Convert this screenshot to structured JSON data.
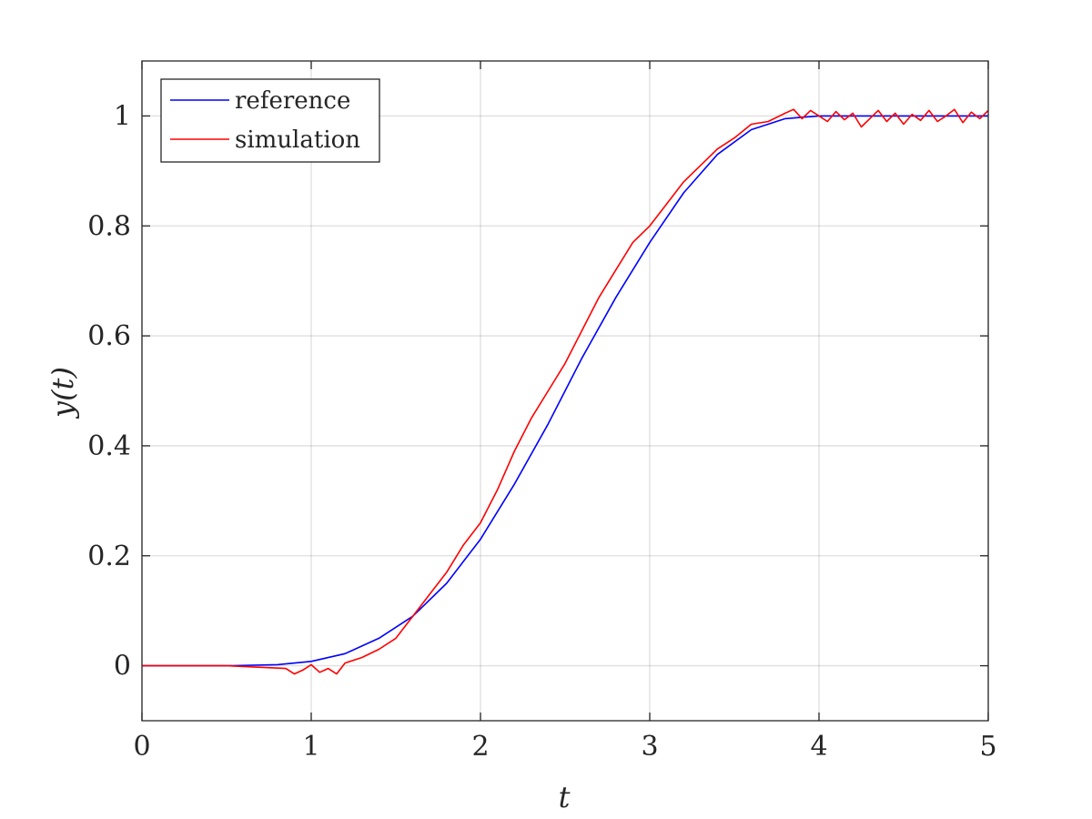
{
  "chart_data": {
    "type": "line",
    "xlabel": "t",
    "ylabel": "y(t)",
    "xlim": [
      0,
      5
    ],
    "ylim": [
      -0.1,
      1.1
    ],
    "x_ticks": [
      "0",
      "1",
      "2",
      "3",
      "4",
      "5"
    ],
    "y_ticks": [
      "0",
      "0.2",
      "0.4",
      "0.6",
      "0.8",
      "1"
    ],
    "grid": true,
    "legend_position": "top-left",
    "series": [
      {
        "name": "reference",
        "color": "#0000ff",
        "x": [
          0,
          0.5,
          0.8,
          1.0,
          1.2,
          1.4,
          1.6,
          1.8,
          2.0,
          2.2,
          2.4,
          2.5,
          2.6,
          2.8,
          3.0,
          3.2,
          3.4,
          3.6,
          3.8,
          4.0,
          4.2,
          4.5,
          5.0
        ],
        "y": [
          0,
          0,
          0.002,
          0.008,
          0.022,
          0.05,
          0.09,
          0.15,
          0.23,
          0.33,
          0.44,
          0.5,
          0.56,
          0.67,
          0.77,
          0.86,
          0.93,
          0.975,
          0.995,
          1.0,
          1.0,
          1.0,
          1.0
        ]
      },
      {
        "name": "simulation",
        "color": "#ff0000",
        "x": [
          0,
          0.5,
          0.85,
          0.9,
          0.95,
          1.0,
          1.05,
          1.1,
          1.15,
          1.2,
          1.3,
          1.4,
          1.5,
          1.6,
          1.7,
          1.8,
          1.9,
          2.0,
          2.1,
          2.2,
          2.3,
          2.4,
          2.5,
          2.6,
          2.7,
          2.8,
          2.9,
          3.0,
          3.1,
          3.2,
          3.3,
          3.4,
          3.5,
          3.6,
          3.7,
          3.8,
          3.85,
          3.9,
          3.95,
          4.0,
          4.05,
          4.1,
          4.15,
          4.2,
          4.25,
          4.3,
          4.35,
          4.4,
          4.45,
          4.5,
          4.55,
          4.6,
          4.65,
          4.7,
          4.75,
          4.8,
          4.85,
          4.9,
          4.95,
          5.0
        ],
        "y": [
          0,
          0,
          -0.005,
          -0.015,
          -0.008,
          0.002,
          -0.012,
          -0.005,
          -0.015,
          0.005,
          0.015,
          0.03,
          0.05,
          0.09,
          0.13,
          0.17,
          0.22,
          0.26,
          0.32,
          0.39,
          0.45,
          0.5,
          0.55,
          0.61,
          0.67,
          0.72,
          0.77,
          0.8,
          0.84,
          0.88,
          0.91,
          0.94,
          0.96,
          0.985,
          0.99,
          1.005,
          1.012,
          0.995,
          1.01,
          1.0,
          0.99,
          1.008,
          0.993,
          1.005,
          0.98,
          0.995,
          1.01,
          0.99,
          1.005,
          0.985,
          1.003,
          0.992,
          1.01,
          0.99,
          1.0,
          1.012,
          0.988,
          1.007,
          0.995,
          1.01
        ]
      }
    ]
  }
}
